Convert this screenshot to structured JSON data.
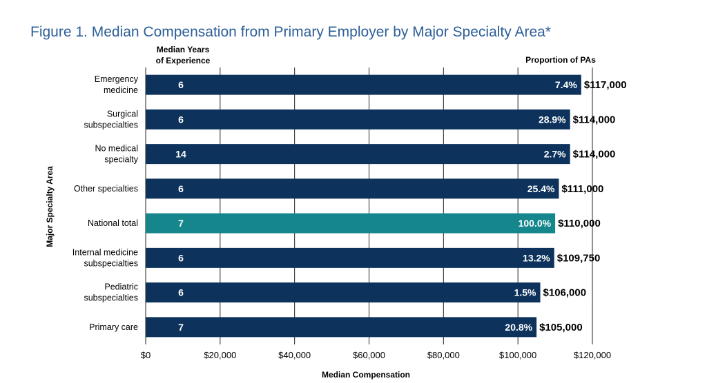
{
  "chart_data": {
    "type": "bar",
    "orientation": "horizontal",
    "title": "Figure 1. Median Compensation from Primary Employer by Major Specialty Area*",
    "xlabel": "Median Compensation",
    "ylabel": "Major Specialty Area",
    "years_header": [
      "Median Years",
      "of Experience"
    ],
    "proportion_header": "Proportion of PAs",
    "xlim": [
      0,
      120000
    ],
    "x_ticks": [
      "$0",
      "$20,000",
      "$40,000",
      "$60,000",
      "$80,000",
      "$100,000",
      "$120,000"
    ],
    "grid": "vertical",
    "categories": [
      [
        "Emergency",
        "medicine"
      ],
      [
        "Surgical",
        "subspecialties"
      ],
      [
        "No medical",
        "specialty"
      ],
      [
        "Other specialties"
      ],
      [
        "National total"
      ],
      [
        "Internal medicine",
        "subspecialties"
      ],
      [
        "Pediatric",
        "subspecialties"
      ],
      [
        "Primary care"
      ]
    ],
    "values": [
      117000,
      114000,
      114000,
      111000,
      110000,
      109750,
      106000,
      105000
    ],
    "value_labels": [
      "$117,000",
      "$114,000",
      "$114,000",
      "$111,000",
      "$110,000",
      "$109,750",
      "$106,000",
      "$105,000"
    ],
    "median_years": [
      "6",
      "6",
      "14",
      "6",
      "7",
      "6",
      "6",
      "7"
    ],
    "proportions": [
      "7.4%",
      "28.9%",
      "2.7%",
      "25.4%",
      "100.0%",
      "13.2%",
      "1.5%",
      "20.8%"
    ],
    "colors": {
      "default_bar": "#0d325c",
      "highlight_bar": "#14868c",
      "title": "#2d5f98"
    },
    "highlight_index": 4
  }
}
